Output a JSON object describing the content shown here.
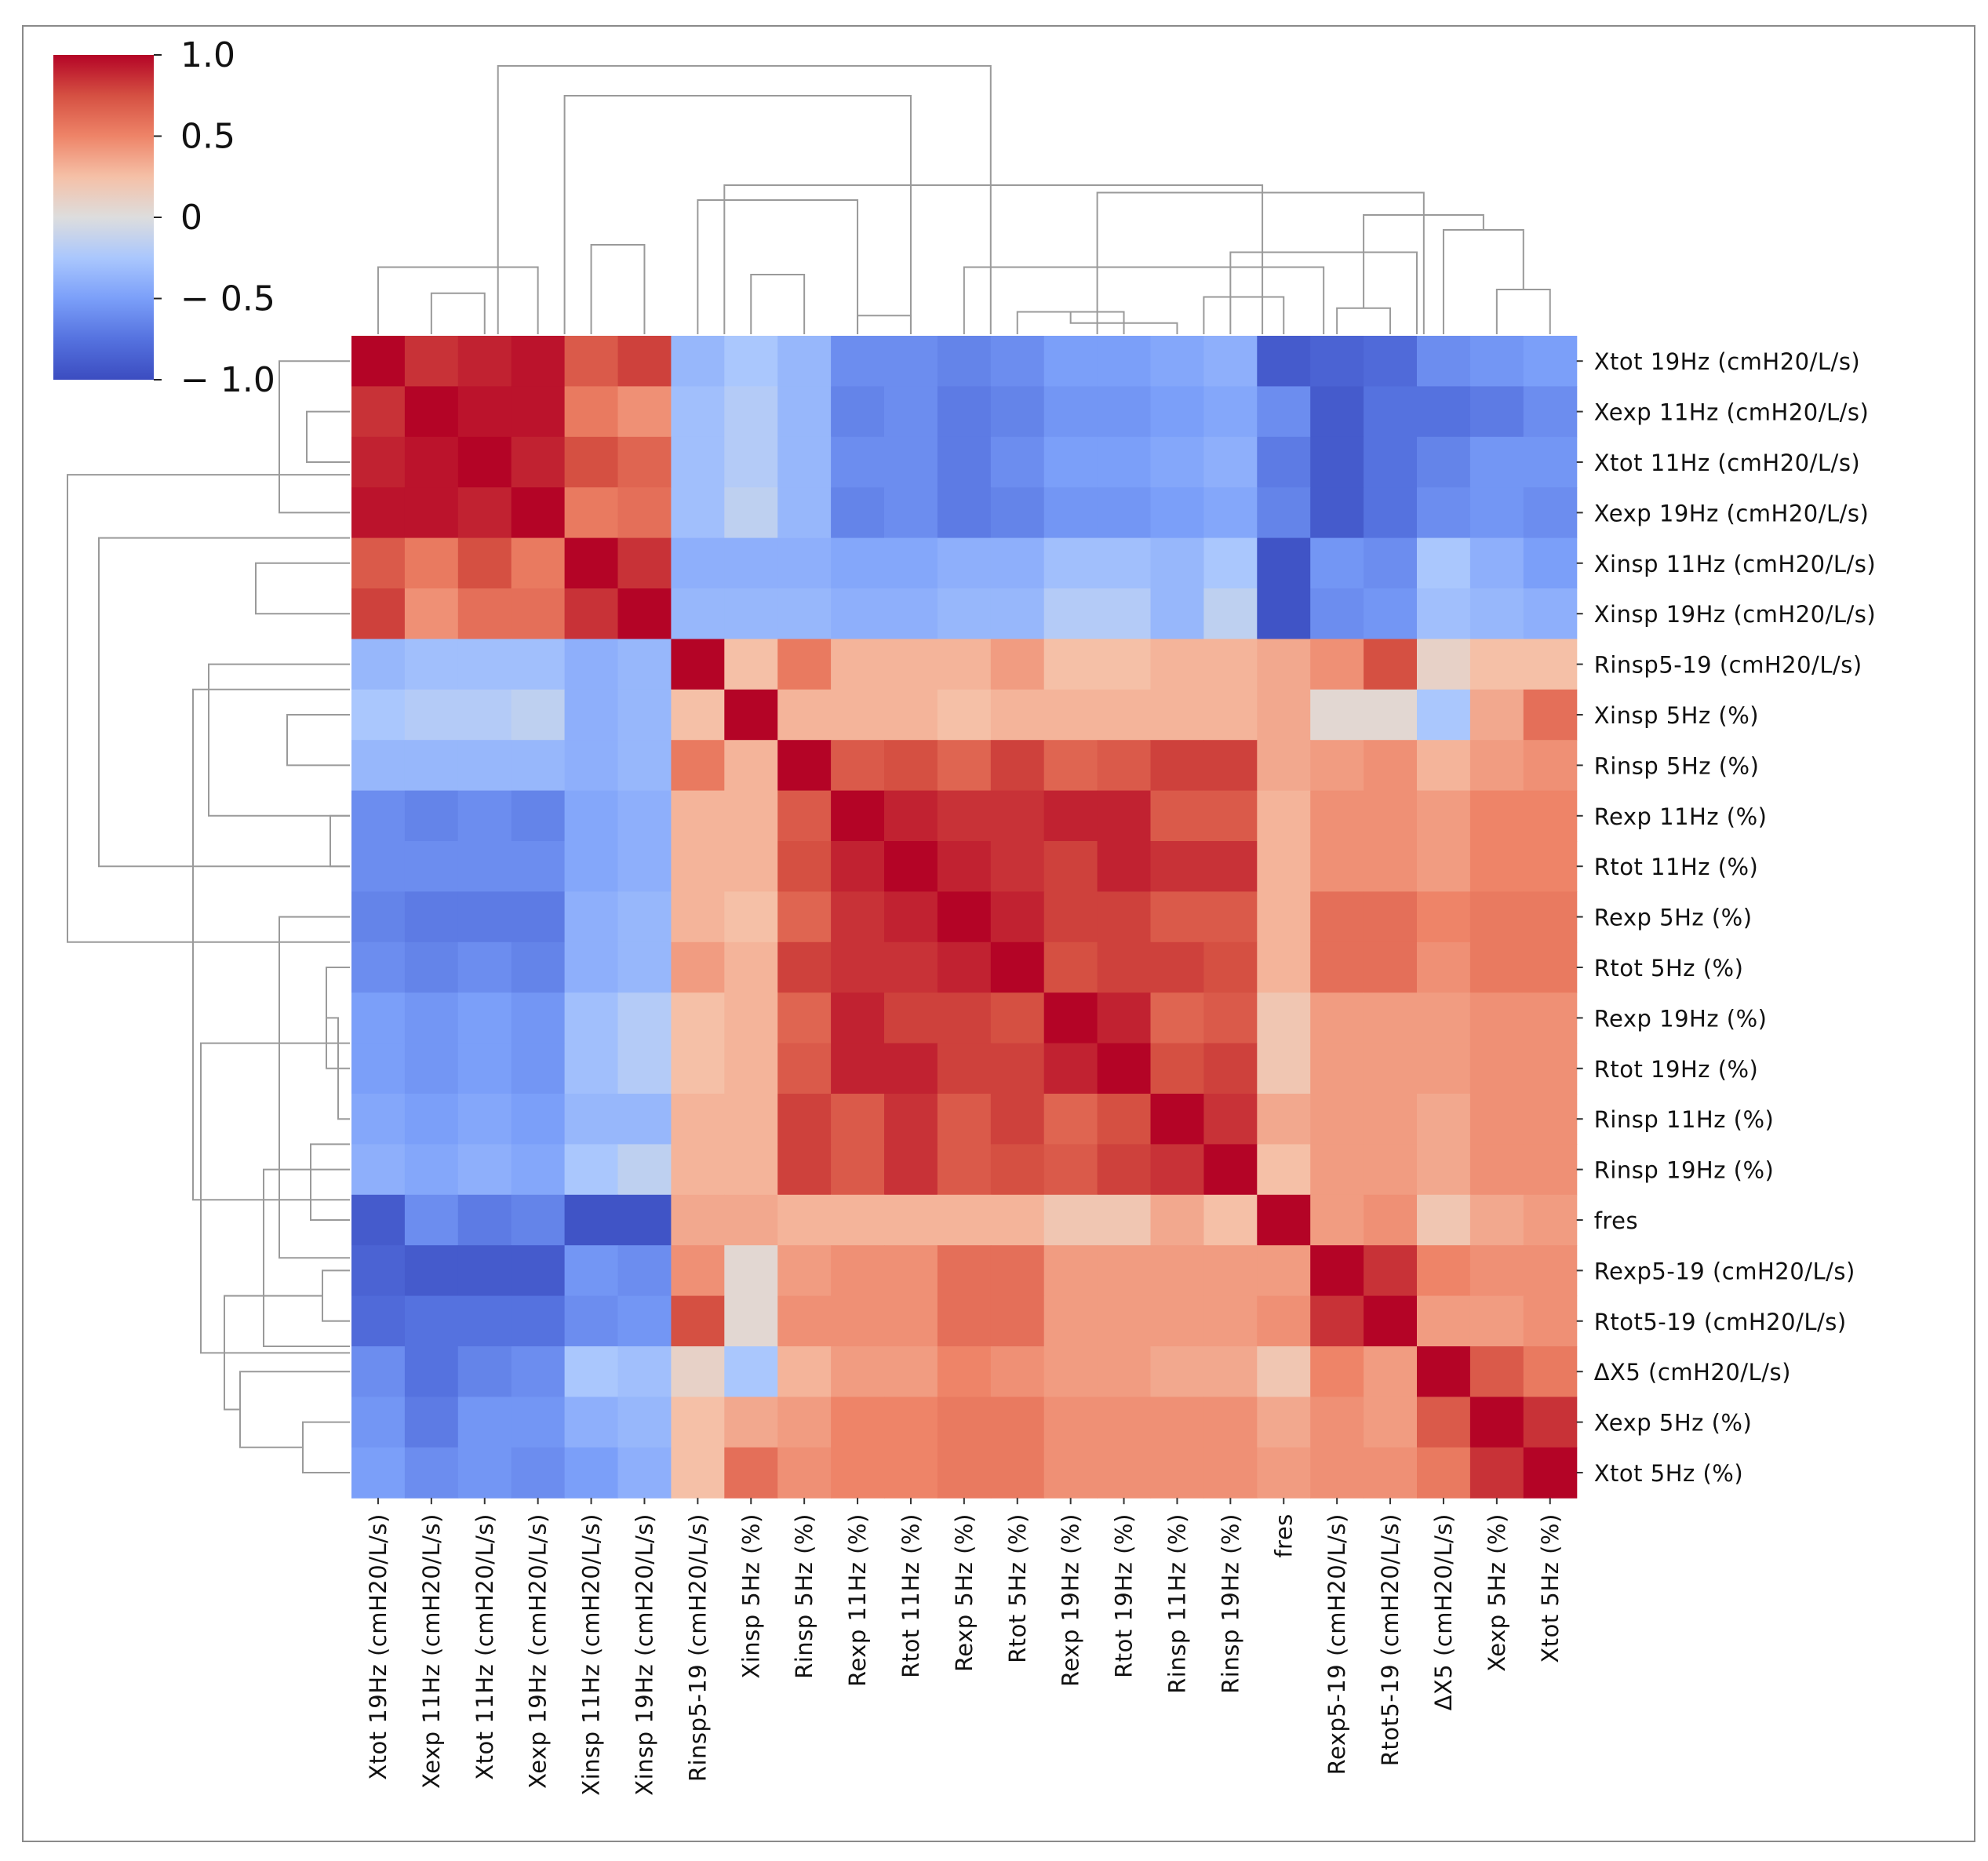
{
  "chart_data": {
    "type": "heatmap",
    "subtype": "clustered correlation heatmap",
    "title": "",
    "labels": [
      "Xtot 19Hz (cmH20/L/s)",
      "Xexp 11Hz (cmH20/L/s)",
      "Xtot 11Hz (cmH20/L/s)",
      "Xexp 19Hz (cmH20/L/s)",
      "Xinsp 11Hz (cmH20/L/s)",
      "Xinsp 19Hz (cmH20/L/s)",
      "Rinsp5-19  (cmH20/L/s)",
      "Xinsp 5Hz (%)",
      "Rinsp 5Hz (%)",
      "Rexp 11Hz (%)",
      "Rtot 11Hz (%)",
      "Rexp 5Hz (%)",
      "Rtot 5Hz (%)",
      "Rexp 19Hz (%)",
      "Rtot 19Hz (%)",
      "Rinsp 11Hz (%)",
      "Rinsp 19Hz (%)",
      "fres",
      "Rexp5-19  (cmH20/L/s)",
      "Rtot5-19  (cmH20/L/s)",
      "ΔX5 (cmH20/L/s)",
      "Xexp 5Hz (%)",
      "Xtot 5Hz (%)"
    ],
    "x_tick_labels": [
      "Xtot 19Hz (cmH20/L/s)",
      "Xexp 11Hz (cmH20/L/s)",
      "Xtot 11Hz (cmH20/L/s)",
      "Xexp 19Hz (cmH20/L/s)",
      "Xinsp 11Hz (cmH20/L/s)",
      "Xinsp 19Hz (cmH20/L/s)",
      "Rinsp5-19  (cmH20/L/s)",
      "Xinsp 5Hz (%)",
      "Rinsp 5Hz (%)",
      "Rexp 11Hz (%)",
      "Rtot 11Hz (%)",
      "Rexp 5Hz (%)",
      "Rtot 5Hz (%)",
      "Rexp 19Hz (%)",
      "Rtot 19Hz (%)",
      "Rinsp 11Hz (%)",
      "Rinsp 19Hz (%)",
      "fres",
      "Rexp5-19  (cmH20/L/s)",
      "Rtot5-19  (cmH20/L/s)",
      "ΔX5 (cmH20/L/s)",
      "Xexp 5Hz (%)",
      "Xtot 5Hz (%)"
    ],
    "values": [
      [
        1.0,
        0.85,
        0.9,
        0.95,
        0.7,
        0.8,
        -0.35,
        -0.25,
        -0.35,
        -0.6,
        -0.6,
        -0.65,
        -0.6,
        -0.5,
        -0.5,
        -0.45,
        -0.4,
        -0.9,
        -0.85,
        -0.8,
        -0.6,
        -0.55,
        -0.5
      ],
      [
        0.85,
        1.0,
        0.95,
        0.95,
        0.55,
        0.45,
        -0.3,
        -0.2,
        -0.35,
        -0.65,
        -0.6,
        -0.7,
        -0.65,
        -0.55,
        -0.55,
        -0.5,
        -0.45,
        -0.6,
        -0.9,
        -0.75,
        -0.75,
        -0.7,
        -0.6
      ],
      [
        0.9,
        0.95,
        1.0,
        0.9,
        0.75,
        0.65,
        -0.3,
        -0.2,
        -0.35,
        -0.6,
        -0.6,
        -0.7,
        -0.6,
        -0.5,
        -0.5,
        -0.45,
        -0.4,
        -0.7,
        -0.9,
        -0.75,
        -0.65,
        -0.55,
        -0.55
      ],
      [
        0.95,
        0.95,
        0.9,
        1.0,
        0.55,
        0.6,
        -0.3,
        -0.15,
        -0.35,
        -0.65,
        -0.6,
        -0.7,
        -0.65,
        -0.55,
        -0.55,
        -0.5,
        -0.45,
        -0.65,
        -0.9,
        -0.75,
        -0.6,
        -0.55,
        -0.6
      ],
      [
        0.7,
        0.55,
        0.75,
        0.55,
        1.0,
        0.85,
        -0.4,
        -0.4,
        -0.4,
        -0.45,
        -0.45,
        -0.4,
        -0.4,
        -0.3,
        -0.3,
        -0.35,
        -0.25,
        -0.95,
        -0.55,
        -0.6,
        -0.25,
        -0.4,
        -0.5
      ],
      [
        0.8,
        0.45,
        0.6,
        0.6,
        0.85,
        1.0,
        -0.35,
        -0.35,
        -0.35,
        -0.4,
        -0.4,
        -0.35,
        -0.35,
        -0.2,
        -0.2,
        -0.35,
        -0.15,
        -0.95,
        -0.6,
        -0.55,
        -0.3,
        -0.35,
        -0.4
      ],
      [
        -0.35,
        -0.3,
        -0.3,
        -0.3,
        -0.4,
        -0.35,
        1.0,
        0.25,
        0.55,
        0.3,
        0.3,
        0.3,
        0.4,
        0.25,
        0.25,
        0.3,
        0.3,
        0.35,
        0.45,
        0.75,
        0.1,
        0.25,
        0.25
      ],
      [
        -0.25,
        -0.2,
        -0.2,
        -0.15,
        -0.4,
        -0.35,
        0.25,
        1.0,
        0.3,
        0.3,
        0.3,
        0.25,
        0.3,
        0.3,
        0.3,
        0.3,
        0.3,
        0.35,
        0.05,
        0.05,
        -0.25,
        0.35,
        0.6
      ],
      [
        -0.35,
        -0.35,
        -0.35,
        -0.35,
        -0.4,
        -0.35,
        0.55,
        0.3,
        1.0,
        0.7,
        0.75,
        0.65,
        0.8,
        0.65,
        0.7,
        0.8,
        0.8,
        0.35,
        0.4,
        0.45,
        0.3,
        0.4,
        0.45
      ],
      [
        -0.6,
        -0.65,
        -0.6,
        -0.65,
        -0.45,
        -0.4,
        0.3,
        0.3,
        0.7,
        1.0,
        0.9,
        0.85,
        0.85,
        0.9,
        0.9,
        0.7,
        0.7,
        0.3,
        0.45,
        0.45,
        0.4,
        0.5,
        0.5
      ],
      [
        -0.6,
        -0.6,
        -0.6,
        -0.6,
        -0.45,
        -0.4,
        0.3,
        0.3,
        0.75,
        0.9,
        1.0,
        0.9,
        0.85,
        0.8,
        0.9,
        0.85,
        0.85,
        0.3,
        0.45,
        0.45,
        0.4,
        0.5,
        0.5
      ],
      [
        -0.65,
        -0.7,
        -0.7,
        -0.7,
        -0.4,
        -0.35,
        0.3,
        0.25,
        0.65,
        0.85,
        0.9,
        1.0,
        0.9,
        0.8,
        0.8,
        0.7,
        0.7,
        0.3,
        0.6,
        0.6,
        0.5,
        0.55,
        0.55
      ],
      [
        -0.6,
        -0.65,
        -0.6,
        -0.65,
        -0.4,
        -0.35,
        0.4,
        0.3,
        0.8,
        0.85,
        0.85,
        0.9,
        1.0,
        0.75,
        0.8,
        0.8,
        0.75,
        0.3,
        0.6,
        0.6,
        0.45,
        0.55,
        0.55
      ],
      [
        -0.5,
        -0.55,
        -0.5,
        -0.55,
        -0.3,
        -0.2,
        0.25,
        0.3,
        0.65,
        0.9,
        0.8,
        0.8,
        0.75,
        1.0,
        0.9,
        0.65,
        0.7,
        0.2,
        0.4,
        0.4,
        0.4,
        0.45,
        0.45
      ],
      [
        -0.5,
        -0.55,
        -0.5,
        -0.55,
        -0.3,
        -0.2,
        0.25,
        0.3,
        0.7,
        0.9,
        0.9,
        0.8,
        0.8,
        0.9,
        1.0,
        0.75,
        0.8,
        0.2,
        0.4,
        0.4,
        0.4,
        0.45,
        0.45
      ],
      [
        -0.45,
        -0.5,
        -0.45,
        -0.5,
        -0.35,
        -0.35,
        0.3,
        0.3,
        0.8,
        0.7,
        0.85,
        0.7,
        0.8,
        0.65,
        0.75,
        1.0,
        0.85,
        0.35,
        0.4,
        0.4,
        0.35,
        0.45,
        0.45
      ],
      [
        -0.4,
        -0.45,
        -0.4,
        -0.45,
        -0.25,
        -0.15,
        0.3,
        0.3,
        0.8,
        0.7,
        0.85,
        0.7,
        0.75,
        0.7,
        0.8,
        0.85,
        1.0,
        0.25,
        0.4,
        0.4,
        0.35,
        0.45,
        0.45
      ],
      [
        -0.9,
        -0.6,
        -0.7,
        -0.65,
        -0.95,
        -0.95,
        0.35,
        0.35,
        0.3,
        0.3,
        0.3,
        0.3,
        0.3,
        0.2,
        0.2,
        0.35,
        0.25,
        1.0,
        0.4,
        0.45,
        0.2,
        0.35,
        0.4
      ],
      [
        -0.85,
        -0.9,
        -0.9,
        -0.9,
        -0.55,
        -0.6,
        0.45,
        0.05,
        0.4,
        0.45,
        0.45,
        0.6,
        0.6,
        0.4,
        0.4,
        0.4,
        0.4,
        0.4,
        1.0,
        0.85,
        0.5,
        0.45,
        0.45
      ],
      [
        -0.8,
        -0.75,
        -0.75,
        -0.75,
        -0.6,
        -0.55,
        0.75,
        0.05,
        0.45,
        0.45,
        0.45,
        0.6,
        0.6,
        0.4,
        0.4,
        0.4,
        0.4,
        0.45,
        0.85,
        1.0,
        0.4,
        0.4,
        0.45
      ],
      [
        -0.6,
        -0.75,
        -0.65,
        -0.6,
        -0.25,
        -0.3,
        0.1,
        -0.25,
        0.3,
        0.4,
        0.4,
        0.5,
        0.45,
        0.4,
        0.4,
        0.35,
        0.35,
        0.2,
        0.5,
        0.4,
        1.0,
        0.7,
        0.55
      ],
      [
        -0.55,
        -0.7,
        -0.55,
        -0.55,
        -0.4,
        -0.35,
        0.25,
        0.35,
        0.4,
        0.5,
        0.5,
        0.55,
        0.55,
        0.45,
        0.45,
        0.45,
        0.45,
        0.35,
        0.45,
        0.4,
        0.7,
        1.0,
        0.85
      ],
      [
        -0.5,
        -0.6,
        -0.55,
        -0.6,
        -0.5,
        -0.4,
        0.25,
        0.6,
        0.45,
        0.5,
        0.5,
        0.55,
        0.55,
        0.45,
        0.45,
        0.45,
        0.45,
        0.4,
        0.45,
        0.45,
        0.55,
        0.85,
        1.0
      ]
    ],
    "colormap": "coolwarm",
    "colorbar": {
      "vmin": -1.0,
      "vmax": 1.0,
      "ticks": [
        "1.0",
        "0.5",
        "0",
        "− 0.5",
        "− 1.0"
      ],
      "tick_values": [
        1.0,
        0.5,
        0,
        -0.5,
        -1.0
      ]
    },
    "dendrogram_clusters": [
      [
        "Xtot 19Hz (cmH20/L/s)",
        "Xexp 11Hz (cmH20/L/s)",
        "Xtot 11Hz (cmH20/L/s)",
        "Xexp 19Hz (cmH20/L/s)",
        "Xinsp 11Hz (cmH20/L/s)",
        "Xinsp 19Hz (cmH20/L/s)"
      ],
      [
        "Rinsp5-19  (cmH20/L/s)",
        "Xinsp 5Hz (%)"
      ],
      [
        "Rinsp 5Hz (%)",
        "Rexp 11Hz (%)",
        "Rtot 11Hz (%)",
        "Rexp 5Hz (%)",
        "Rtot 5Hz (%)",
        "Rexp 19Hz (%)",
        "Rtot 19Hz (%)",
        "Rinsp 11Hz (%)",
        "Rinsp 19Hz (%)"
      ],
      [
        "fres",
        "Rexp5-19  (cmH20/L/s)",
        "Rtot5-19  (cmH20/L/s)"
      ],
      [
        "ΔX5 (cmH20/L/s)",
        "Xexp 5Hz (%)",
        "Xtot 5Hz (%)"
      ]
    ],
    "legend": "top-left colorbar",
    "colors": {
      "low": "#3b4cc0",
      "mid": "#dddddd",
      "high": "#b40426",
      "dendrogram": "#9a9a9a"
    }
  }
}
